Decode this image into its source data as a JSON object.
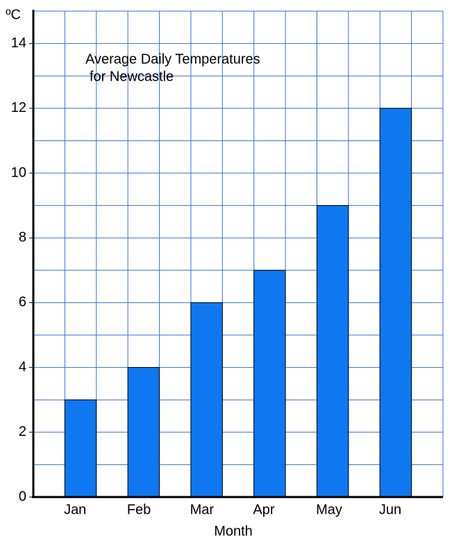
{
  "chart_data": {
    "type": "bar",
    "title": [
      "Average Daily Temperatures",
      "for Newcastle"
    ],
    "y_unit": "ºC",
    "x_label": "Month",
    "categories": [
      "Jan",
      "Feb",
      "Mar",
      "Apr",
      "May",
      "Jun"
    ],
    "values": [
      3,
      4,
      6,
      7,
      9,
      12
    ],
    "color": "#0f78f0",
    "grid_color": "#3a6fd8",
    "ylim": [
      0,
      15
    ],
    "yticks": [
      0,
      2,
      4,
      6,
      8,
      10,
      12,
      14
    ],
    "ygrid": [
      0,
      1,
      2,
      3,
      4,
      5,
      6,
      7,
      8,
      9,
      10,
      11,
      12,
      13,
      14,
      15
    ],
    "grid": true
  }
}
